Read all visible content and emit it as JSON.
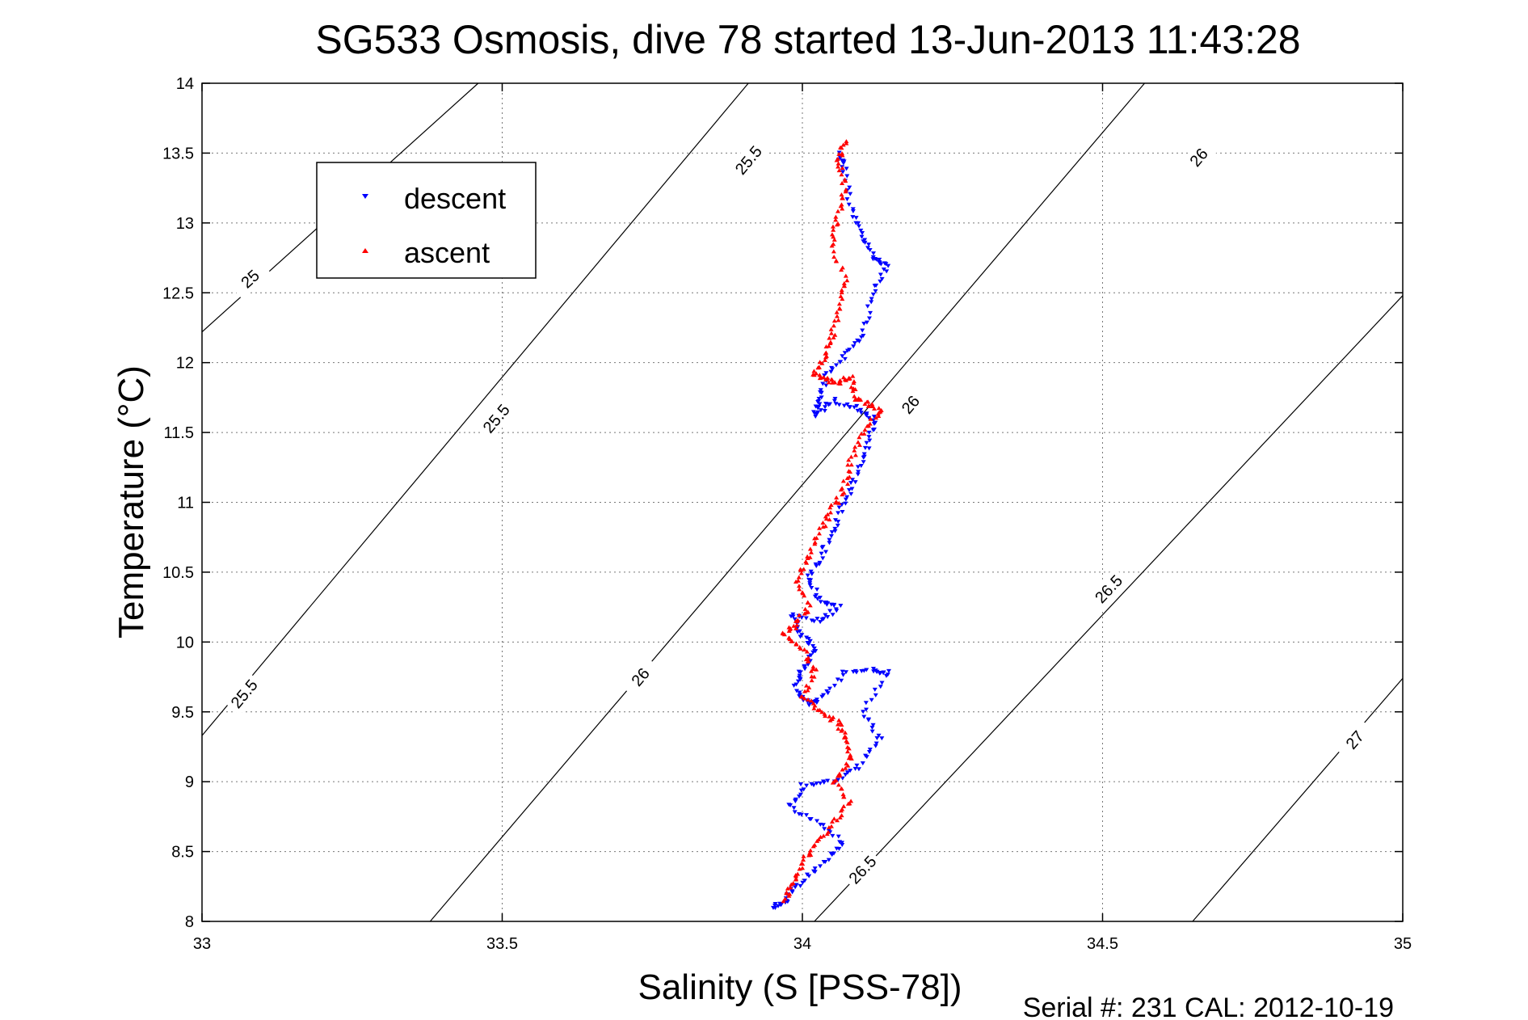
{
  "title": "SG533 Osmosis, dive 78 started 13-Jun-2013 11:43:28",
  "footer": "Serial #: 231  CAL: 2012-10-19",
  "chart_data": {
    "type": "scatter",
    "xlabel": "Salinity (S [PSS-78])",
    "ylabel": "Temperature (°C)",
    "xlim": [
      33,
      35
    ],
    "ylim": [
      8,
      14
    ],
    "xticks": [
      33,
      33.5,
      34,
      34.5,
      35
    ],
    "xtick_labels": [
      "33",
      "33.5",
      "34",
      "34.5",
      "35"
    ],
    "yticks": [
      8,
      8.5,
      9,
      9.5,
      10,
      10.5,
      11,
      11.5,
      12,
      12.5,
      13,
      13.5,
      14
    ],
    "ytick_labels": [
      "8",
      "8.5",
      "9",
      "9.5",
      "10",
      "10.5",
      "11",
      "11.5",
      "12",
      "12.5",
      "13",
      "13.5",
      "14"
    ],
    "grid": true,
    "legend_position": "top-left",
    "contours": [
      {
        "label": "25",
        "points": [
          [
            33.0,
            12.22
          ],
          [
            33.46,
            14.0
          ]
        ],
        "label_at": [
          33.08,
          12.6
        ]
      },
      {
        "label": "25.5",
        "points": [
          [
            33.0,
            9.33
          ],
          [
            33.91,
            14.0
          ]
        ],
        "label_at": [
          33.49,
          11.6
        ],
        "extra_labels": [
          [
            33.07,
            9.63
          ],
          [
            33.91,
            13.45
          ]
        ]
      },
      {
        "label": "26",
        "points": [
          [
            33.38,
            8.0
          ],
          [
            34.57,
            14.0
          ]
        ],
        "label_at": [
          33.73,
          9.75
        ],
        "extra_labels": [
          [
            34.18,
            11.7
          ],
          [
            34.66,
            13.47
          ]
        ]
      },
      {
        "label": "26.5",
        "points": [
          [
            34.02,
            8.0
          ],
          [
            35.0,
            12.48
          ]
        ],
        "label_at": [
          34.1,
          8.37
        ],
        "extra_labels": [
          [
            34.51,
            10.38
          ]
        ]
      },
      {
        "label": "27",
        "points": [
          [
            34.65,
            8.0
          ],
          [
            35.0,
            9.74
          ]
        ],
        "label_at": [
          34.92,
          9.3
        ]
      }
    ],
    "series": [
      {
        "name": "descent",
        "color": "#0000ff",
        "marker": "triangle-down",
        "path": [
          [
            34.06,
            13.5
          ],
          [
            34.07,
            13.4
          ],
          [
            34.08,
            13.1
          ],
          [
            34.1,
            12.9
          ],
          [
            34.12,
            12.75
          ],
          [
            34.14,
            12.7
          ],
          [
            34.12,
            12.5
          ],
          [
            34.1,
            12.2
          ],
          [
            34.07,
            12.05
          ],
          [
            34.04,
            11.9
          ],
          [
            34.03,
            11.75
          ],
          [
            34.02,
            11.62
          ],
          [
            34.05,
            11.73
          ],
          [
            34.09,
            11.68
          ],
          [
            34.12,
            11.6
          ],
          [
            34.11,
            11.4
          ],
          [
            34.09,
            11.2
          ],
          [
            34.07,
            11.0
          ],
          [
            34.05,
            10.8
          ],
          [
            34.03,
            10.6
          ],
          [
            34.01,
            10.45
          ],
          [
            34.03,
            10.3
          ],
          [
            34.06,
            10.25
          ],
          [
            34.03,
            10.15
          ],
          [
            33.98,
            10.2
          ],
          [
            34.0,
            10.05
          ],
          [
            34.02,
            9.95
          ],
          [
            34.0,
            9.8
          ],
          [
            33.99,
            9.68
          ],
          [
            34.01,
            9.55
          ],
          [
            34.03,
            9.6
          ],
          [
            34.07,
            9.78
          ],
          [
            34.12,
            9.8
          ],
          [
            34.14,
            9.78
          ],
          [
            34.1,
            9.5
          ],
          [
            34.13,
            9.3
          ],
          [
            34.09,
            9.1
          ],
          [
            34.05,
            9.0
          ],
          [
            34.0,
            8.97
          ],
          [
            33.98,
            8.82
          ],
          [
            34.03,
            8.7
          ],
          [
            34.07,
            8.55
          ],
          [
            34.03,
            8.4
          ],
          [
            33.99,
            8.25
          ],
          [
            33.97,
            8.13
          ],
          [
            33.95,
            8.1
          ]
        ]
      },
      {
        "name": "ascent",
        "color": "#ff0000",
        "marker": "triangle-up",
        "path": [
          [
            34.07,
            13.58
          ],
          [
            34.06,
            13.45
          ],
          [
            34.07,
            13.25
          ],
          [
            34.06,
            13.05
          ],
          [
            34.05,
            12.85
          ],
          [
            34.07,
            12.6
          ],
          [
            34.06,
            12.4
          ],
          [
            34.05,
            12.2
          ],
          [
            34.04,
            12.05
          ],
          [
            34.02,
            11.92
          ],
          [
            34.04,
            11.88
          ],
          [
            34.06,
            11.85
          ],
          [
            34.08,
            11.9
          ],
          [
            34.09,
            11.75
          ],
          [
            34.11,
            11.7
          ],
          [
            34.13,
            11.65
          ],
          [
            34.1,
            11.5
          ],
          [
            34.08,
            11.3
          ],
          [
            34.07,
            11.1
          ],
          [
            34.05,
            10.95
          ],
          [
            34.03,
            10.8
          ],
          [
            34.01,
            10.6
          ],
          [
            33.99,
            10.45
          ],
          [
            34.01,
            10.25
          ],
          [
            33.99,
            10.12
          ],
          [
            33.97,
            10.05
          ],
          [
            34.0,
            9.95
          ],
          [
            34.02,
            9.8
          ],
          [
            34.0,
            9.62
          ],
          [
            34.03,
            9.5
          ],
          [
            34.06,
            9.42
          ],
          [
            34.07,
            9.3
          ],
          [
            34.08,
            9.15
          ],
          [
            34.05,
            9.0
          ],
          [
            34.08,
            8.85
          ],
          [
            34.05,
            8.7
          ],
          [
            34.02,
            8.55
          ],
          [
            34.0,
            8.4
          ],
          [
            33.98,
            8.25
          ],
          [
            33.97,
            8.14
          ]
        ]
      }
    ]
  }
}
